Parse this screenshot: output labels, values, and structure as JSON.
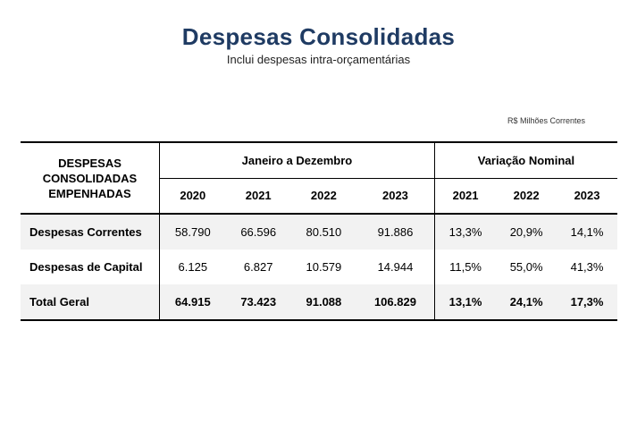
{
  "header": {
    "title": "Despesas Consolidadas",
    "subtitle": "Inclui despesas intra-orçamentárias",
    "unit_note": "R$ Milhões Correntes"
  },
  "table": {
    "row_header": [
      "DESPESAS",
      "CONSOLIDADAS",
      "EMPENHADAS"
    ],
    "group_jan": "Janeiro a Dezembro",
    "group_var": "Variação Nominal",
    "years_jan": [
      "2020",
      "2021",
      "2022",
      "2023"
    ],
    "years_var": [
      "2021",
      "2022",
      "2023"
    ],
    "rows": [
      {
        "label": "Despesas Correntes",
        "values": [
          "58.790",
          "66.596",
          "80.510",
          "91.886"
        ],
        "variations": [
          "13,3%",
          "20,9%",
          "14,1%"
        ]
      },
      {
        "label": "Despesas de Capital",
        "values": [
          "6.125",
          "6.827",
          "10.579",
          "14.944"
        ],
        "variations": [
          "11,5%",
          "55,0%",
          "41,3%"
        ]
      },
      {
        "label": "Total Geral",
        "values": [
          "64.915",
          "73.423",
          "91.088",
          "106.829"
        ],
        "variations": [
          "13,1%",
          "24,1%",
          "17,3%"
        ]
      }
    ]
  },
  "colors": {
    "title": "#1f3b63",
    "row_shading": "#f2f2f2"
  }
}
